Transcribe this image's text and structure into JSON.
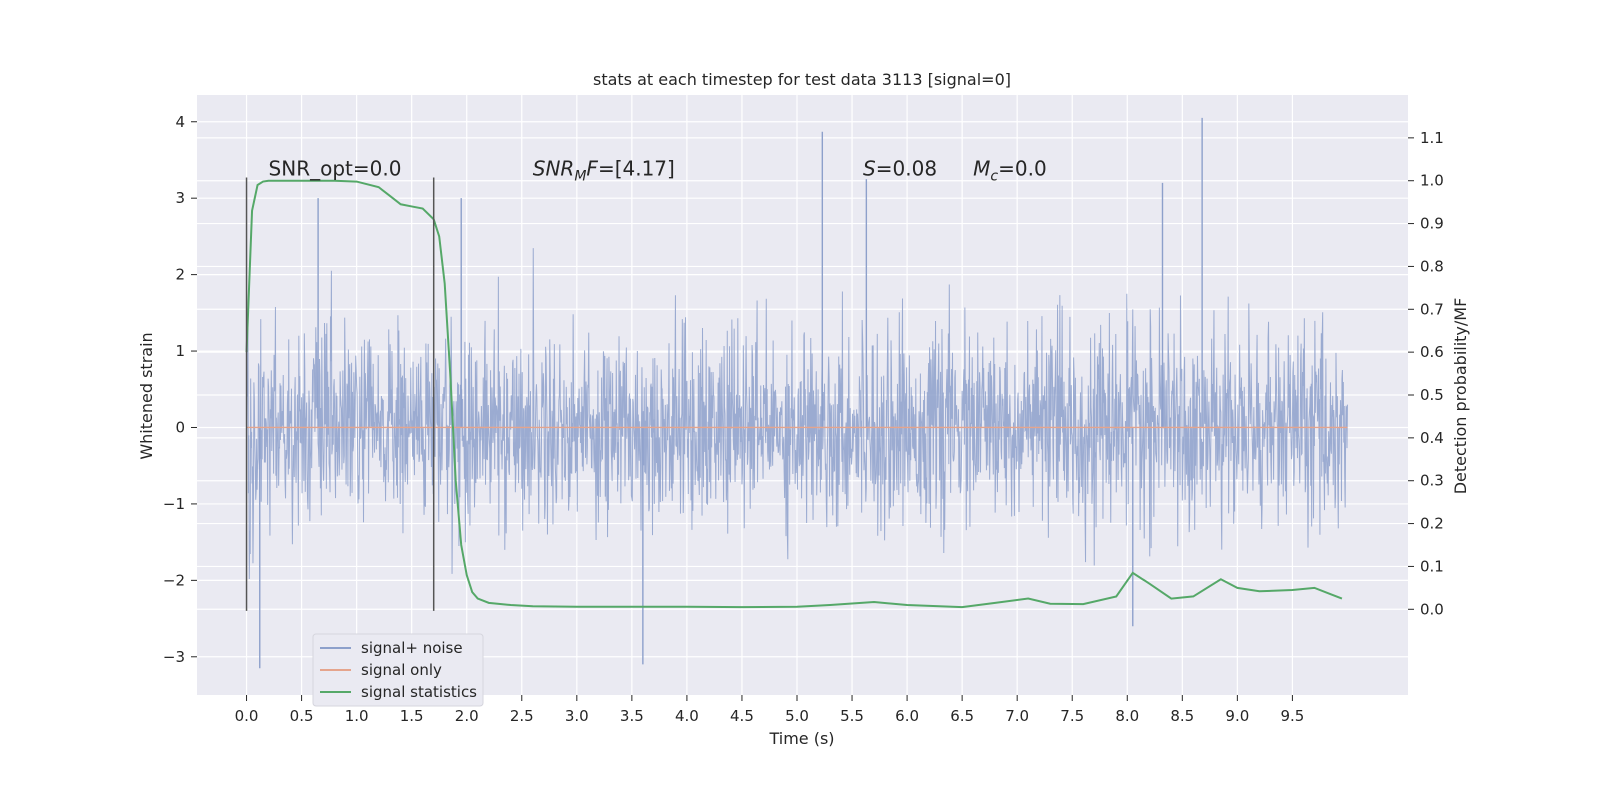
{
  "chart_data": {
    "type": "line",
    "title": "stats at each timestep for test data 3113 [signal=0]",
    "xlabel": "Time (s)",
    "ylabel": "Whitened strain",
    "ylabel_right": "Detection probability/MF",
    "xlim": [
      -0.45,
      10.55
    ],
    "ylim": [
      -3.5,
      4.35
    ],
    "ylim_right": [
      -0.2,
      1.2
    ],
    "x_ticks": [
      0.0,
      0.5,
      1.0,
      1.5,
      2.0,
      2.5,
      3.0,
      3.5,
      4.0,
      4.5,
      5.0,
      5.5,
      6.0,
      6.5,
      7.0,
      7.5,
      8.0,
      8.5,
      9.0,
      9.5
    ],
    "x_tick_labels": [
      "0.0",
      "0.5",
      "1.0",
      "1.5",
      "2.0",
      "2.5",
      "3.0",
      "3.5",
      "4.0",
      "4.5",
      "5.0",
      "5.5",
      "6.0",
      "6.5",
      "7.0",
      "7.5",
      "8.0",
      "8.5",
      "9.0",
      "9.5"
    ],
    "y_ticks": [
      -3,
      -2,
      -1,
      0,
      1,
      2,
      3,
      4
    ],
    "y_tick_labels": [
      "−3",
      "−2",
      "−1",
      "0",
      "1",
      "2",
      "3",
      "4"
    ],
    "y_right_ticks": [
      0.0,
      0.1,
      0.2,
      0.3,
      0.4,
      0.5,
      0.6,
      0.7,
      0.8,
      0.9,
      1.0,
      1.1
    ],
    "y_right_tick_labels": [
      "0.0",
      "0.1",
      "0.2",
      "0.3",
      "0.4",
      "0.5",
      "0.6",
      "0.7",
      "0.8",
      "0.9",
      "1.0",
      "1.1"
    ],
    "grid": true,
    "legend_position": "lower-left",
    "annotations": [
      {
        "text": "SNR_opt=0.0",
        "x": 0.2,
        "y": 3.3
      },
      {
        "text": "SNR",
        "sub": "M",
        "suffix": "F=[4.17]",
        "x": 2.6,
        "y": 3.3
      },
      {
        "text": "S",
        "suffix": "=0.08",
        "x": 5.6,
        "y": 3.3
      },
      {
        "text": "M",
        "sub": "c",
        "suffix": "=0.0",
        "x": 6.6,
        "y": 3.3
      }
    ],
    "vlines": [
      {
        "x": 0.0,
        "ymin": -2.4,
        "ymax": 3.27
      },
      {
        "x": 1.7,
        "ymin": -2.4,
        "ymax": 3.27
      }
    ],
    "series": [
      {
        "name": "signal+ noise",
        "color": "#8da0cb",
        "axis": "left",
        "kind": "noise",
        "x_range": [
          0.0,
          10.0
        ],
        "core_amplitude": 1.0,
        "typical_extent": [
          -2.0,
          2.0
        ],
        "extremes": [
          {
            "x": 0.12,
            "y": -3.15
          },
          {
            "x": 0.65,
            "y": 3.0
          },
          {
            "x": 3.6,
            "y": -3.1
          },
          {
            "x": 5.23,
            "y": 3.87
          },
          {
            "x": 5.63,
            "y": 3.25
          },
          {
            "x": 8.68,
            "y": 4.05
          },
          {
            "x": 8.32,
            "y": 3.2
          },
          {
            "x": 1.95,
            "y": 3.0
          },
          {
            "x": 8.05,
            "y": -2.6
          }
        ]
      },
      {
        "name": "signal only",
        "color": "#e5a48c",
        "axis": "left",
        "x": [
          0.0,
          10.0
        ],
        "y": [
          0.0,
          0.0
        ]
      },
      {
        "name": "signal statistics",
        "color": "#55a868",
        "axis": "right",
        "x": [
          0.0,
          0.05,
          0.1,
          0.15,
          0.2,
          0.3,
          0.5,
          0.8,
          1.0,
          1.2,
          1.3,
          1.4,
          1.5,
          1.6,
          1.7,
          1.75,
          1.8,
          1.85,
          1.9,
          1.95,
          2.0,
          2.05,
          2.1,
          2.2,
          2.4,
          2.6,
          3.0,
          3.5,
          4.0,
          4.5,
          5.0,
          5.3,
          5.7,
          6.0,
          6.5,
          6.8,
          7.1,
          7.3,
          7.6,
          7.9,
          8.05,
          8.2,
          8.4,
          8.6,
          8.85,
          9.0,
          9.2,
          9.5,
          9.7,
          9.85,
          9.95
        ],
        "y": [
          0.6,
          0.93,
          0.99,
          0.998,
          1.0,
          1.0,
          1.0,
          1.0,
          0.998,
          0.985,
          0.965,
          0.945,
          0.94,
          0.935,
          0.91,
          0.87,
          0.76,
          0.55,
          0.3,
          0.15,
          0.08,
          0.04,
          0.025,
          0.015,
          0.01,
          0.007,
          0.006,
          0.006,
          0.006,
          0.005,
          0.006,
          0.01,
          0.017,
          0.01,
          0.005,
          0.015,
          0.025,
          0.013,
          0.012,
          0.03,
          0.085,
          0.06,
          0.025,
          0.03,
          0.07,
          0.05,
          0.042,
          0.045,
          0.05,
          0.035,
          0.025
        ]
      }
    ]
  }
}
